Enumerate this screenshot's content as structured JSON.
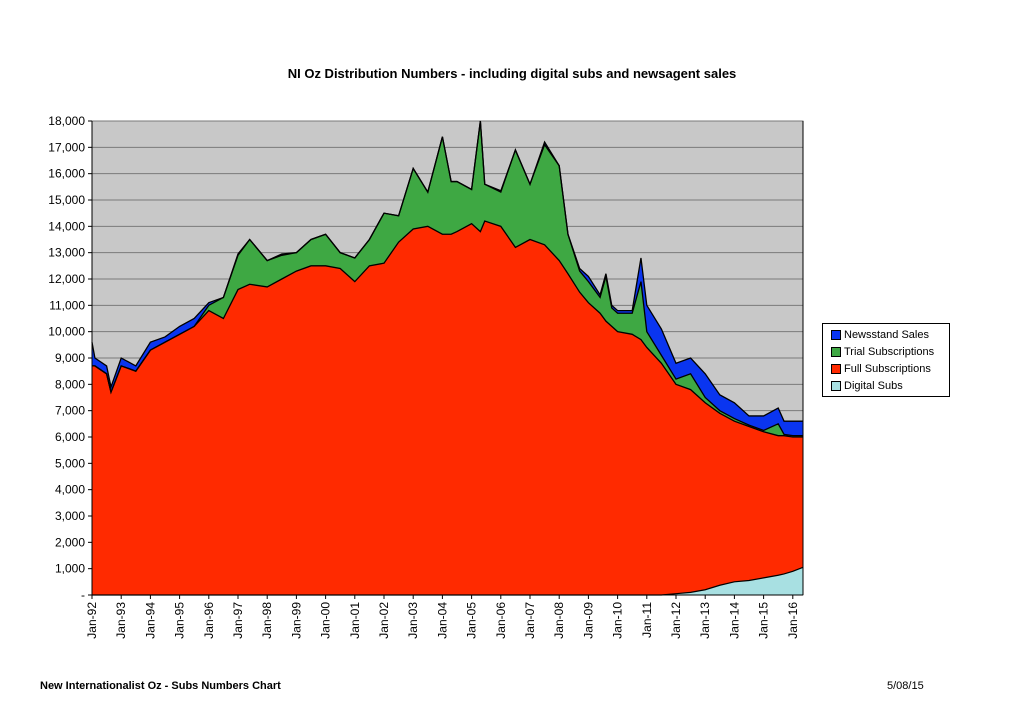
{
  "chart_data": {
    "type": "area",
    "stacked": true,
    "title": "NI Oz Distribution Numbers - including digital subs and newsagent sales",
    "xlabel": "",
    "ylabel": "",
    "ylim": [
      0,
      18000
    ],
    "yticks": [
      0,
      1000,
      2000,
      3000,
      4000,
      5000,
      6000,
      7000,
      8000,
      9000,
      10000,
      11000,
      12000,
      13000,
      14000,
      15000,
      16000,
      17000,
      18000
    ],
    "ytick_labels": [
      "-",
      "1,000",
      "2,000",
      "3,000",
      "4,000",
      "5,000",
      "6,000",
      "7,000",
      "8,000",
      "9,000",
      "10,000",
      "11,000",
      "12,000",
      "13,000",
      "14,000",
      "15,000",
      "16,000",
      "17,000",
      "18,000"
    ],
    "xlim": [
      1992.0,
      2016.35
    ],
    "xticks": [
      1992,
      1993,
      1994,
      1995,
      1996,
      1997,
      1998,
      1999,
      2000,
      2001,
      2002,
      2003,
      2004,
      2005,
      2006,
      2007,
      2008,
      2009,
      2010,
      2011,
      2012,
      2013,
      2014,
      2015,
      2016
    ],
    "xtick_labels": [
      "Jan-92",
      "Jan-93",
      "Jan-94",
      "Jan-95",
      "Jan-96",
      "Jan-97",
      "Jan-98",
      "Jan-99",
      "Jan-00",
      "Jan-01",
      "Jan-02",
      "Jan-03",
      "Jan-04",
      "Jan-05",
      "Jan-06",
      "Jan-07",
      "Jan-08",
      "Jan-09",
      "Jan-10",
      "Jan-11",
      "Jan-12",
      "Jan-13",
      "Jan-14",
      "Jan-15",
      "Jan-16"
    ],
    "grid": true,
    "legend_position": "right",
    "x": [
      1992.0,
      1992.1,
      1992.5,
      1992.65,
      1993.0,
      1993.5,
      1994.0,
      1994.5,
      1995.0,
      1995.5,
      1996.0,
      1996.5,
      1997.0,
      1997.4,
      1998.0,
      1998.5,
      1999.0,
      1999.5,
      2000.0,
      2000.5,
      2001.0,
      2001.5,
      2002.0,
      2002.5,
      2003.0,
      2003.5,
      2004.0,
      2004.3,
      2004.5,
      2005.0,
      2005.3,
      2005.45,
      2006.0,
      2006.5,
      2007.0,
      2007.5,
      2008.0,
      2008.3,
      2008.7,
      2009.0,
      2009.4,
      2009.6,
      2009.8,
      2010.0,
      2010.5,
      2010.8,
      2011.0,
      2011.5,
      2012.0,
      2012.5,
      2013.0,
      2013.5,
      2014.0,
      2014.5,
      2015.0,
      2015.5,
      2015.7,
      2016.0,
      2016.35
    ],
    "series": [
      {
        "name": "Digital Subs",
        "color": "#a8e0e2",
        "values": [
          0,
          0,
          0,
          0,
          0,
          0,
          0,
          0,
          0,
          0,
          0,
          0,
          0,
          0,
          0,
          0,
          0,
          0,
          0,
          0,
          0,
          0,
          0,
          0,
          0,
          0,
          0,
          0,
          0,
          0,
          0,
          0,
          0,
          0,
          0,
          0,
          0,
          0,
          0,
          0,
          0,
          0,
          0,
          0,
          0,
          0,
          0,
          0,
          50,
          100,
          200,
          370,
          500,
          550,
          650,
          750,
          800,
          900,
          1050
        ]
      },
      {
        "name": "Full Subscriptions",
        "color": "#ff2a00",
        "values": [
          8700,
          8700,
          8400,
          7700,
          8700,
          8500,
          9300,
          9600,
          9900,
          10200,
          10800,
          10500,
          11600,
          11800,
          11700,
          12000,
          12300,
          12500,
          12500,
          12400,
          11900,
          12500,
          12600,
          13400,
          13900,
          14000,
          13700,
          13700,
          13800,
          14100,
          13800,
          14200,
          14000,
          13200,
          13500,
          13300,
          12700,
          12200,
          11500,
          11100,
          10700,
          10400,
          10200,
          10000,
          9900,
          9700,
          9400,
          8800,
          7950,
          7700,
          7100,
          6530,
          6100,
          5850,
          5550,
          5300,
          5250,
          5100,
          4950
        ]
      },
      {
        "name": "Trial Subscriptions",
        "color": "#3ea843",
        "values": [
          0,
          0,
          0,
          0,
          0,
          0,
          0,
          0,
          0,
          0,
          200,
          800,
          1300,
          1700,
          1000,
          900,
          700,
          1000,
          1200,
          600,
          900,
          1000,
          1900,
          1000,
          2300,
          1300,
          3700,
          2000,
          1900,
          1300,
          4200,
          1400,
          1300,
          3700,
          2100,
          3800,
          3600,
          1500,
          800,
          800,
          600,
          1700,
          700,
          700,
          800,
          2200,
          600,
          300,
          200,
          600,
          200,
          100,
          100,
          50,
          50,
          450,
          50,
          50,
          50
        ]
      },
      {
        "name": "Newsstand Sales",
        "color": "#0a35f0",
        "values": [
          900,
          300,
          300,
          200,
          300,
          200,
          300,
          200,
          300,
          300,
          100,
          0,
          50,
          0,
          0,
          50,
          0,
          0,
          0,
          0,
          0,
          0,
          0,
          0,
          0,
          0,
          0,
          0,
          0,
          0,
          0,
          0,
          50,
          0,
          0,
          100,
          0,
          0,
          100,
          200,
          100,
          100,
          100,
          100,
          100,
          900,
          1000,
          1000,
          600,
          600,
          900,
          600,
          600,
          350,
          550,
          600,
          500,
          550,
          550
        ]
      }
    ],
    "legend": [
      "Newsstand Sales",
      "Trial Subscriptions",
      "Full Subscriptions",
      "Digital Subs"
    ]
  },
  "footer": {
    "left": "New Internationalist Oz - Subs Numbers Chart",
    "right": "5/08/15"
  }
}
